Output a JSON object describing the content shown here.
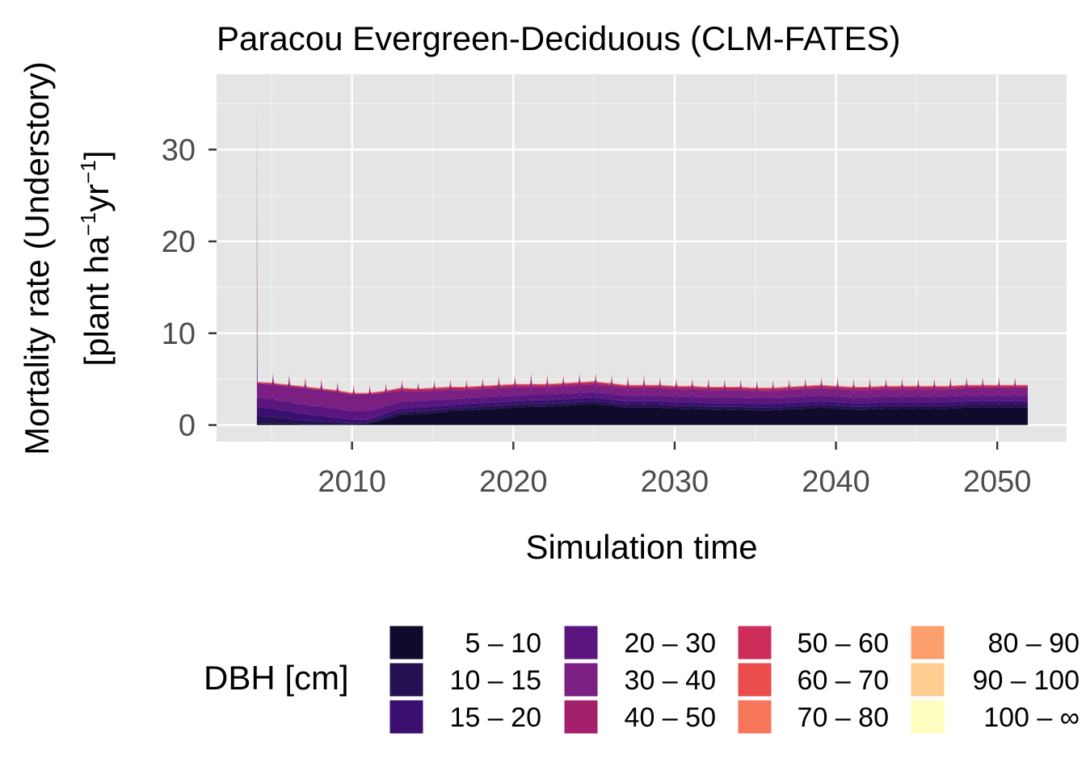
{
  "chart_data": {
    "type": "area",
    "stacked": true,
    "title": "Paracou Evergreen-Deciduous (CLM-FATES)",
    "xlabel": "Simulation time",
    "ylabel_line1": "Mortality rate (Understory)",
    "ylabel_line2": "[plant ha",
    "ylabel_sup1": "−1",
    "ylabel_mid": "yr",
    "ylabel_sup2": "−1",
    "ylabel_end": "]",
    "xlim": [
      2001.6,
      2054.3
    ],
    "ylim": [
      -1.8,
      38.2
    ],
    "x_ticks": [
      2010,
      2020,
      2030,
      2040,
      2050
    ],
    "y_ticks": [
      0,
      10,
      20,
      30
    ],
    "grid": true,
    "panel_background": "#e5e5e5",
    "legend_position": "bottom",
    "legend_title": "DBH [cm]",
    "x_start": 2004.1,
    "x_end": 2051.9,
    "initial_spike": {
      "x": 2004.1,
      "values": [
        0.4,
        0.5,
        0.6,
        8.0,
        9.0,
        6.0,
        4.0,
        2.0,
        1.0,
        0.5,
        0.3,
        0.2
      ]
    },
    "annual_peak_offsets": [
      0.0,
      0.9,
      1.0,
      1.0,
      1.1,
      1.0,
      1.0,
      0.9,
      0.9,
      0.9,
      0.7,
      0.8,
      0.8,
      0.8,
      0.8,
      0.9,
      0.8,
      1.1,
      0.9,
      0.7,
      0.8,
      0.8,
      0.8,
      0.9,
      1.1,
      0.8,
      0.8,
      0.8,
      0.9,
      0.8,
      0.8,
      0.8,
      0.8,
      0.8,
      0.8,
      0.8,
      0.9,
      0.9,
      0.9,
      0.8,
      0.8,
      0.8,
      0.8,
      0.9,
      0.8,
      0.8,
      0.8,
      0.8
    ],
    "years": [
      2004,
      2005,
      2006,
      2007,
      2008,
      2009,
      2010,
      2011,
      2012,
      2013,
      2014,
      2015,
      2016,
      2017,
      2018,
      2019,
      2020,
      2021,
      2022,
      2023,
      2024,
      2025,
      2026,
      2027,
      2028,
      2029,
      2030,
      2031,
      2032,
      2033,
      2034,
      2035,
      2036,
      2037,
      2038,
      2039,
      2040,
      2041,
      2042,
      2043,
      2044,
      2045,
      2046,
      2047,
      2048,
      2049,
      2050,
      2051
    ],
    "series": [
      {
        "name": "5 – 10",
        "color": "#100b2d",
        "values": [
          0.2,
          0.2,
          0.2,
          0.1,
          0.1,
          0.1,
          0.1,
          0.2,
          0.6,
          1.1,
          1.2,
          1.3,
          1.5,
          1.6,
          1.7,
          1.8,
          1.9,
          2.0,
          2.0,
          2.1,
          2.2,
          2.3,
          2.1,
          1.9,
          1.9,
          1.9,
          1.8,
          1.8,
          1.7,
          1.7,
          1.7,
          1.6,
          1.6,
          1.7,
          1.8,
          1.9,
          1.8,
          1.7,
          1.7,
          1.8,
          1.8,
          1.8,
          1.8,
          1.8,
          1.9,
          1.9,
          1.9,
          1.9
        ]
      },
      {
        "name": "10 – 15",
        "color": "#231151",
        "values": [
          0.8,
          0.7,
          0.5,
          0.4,
          0.3,
          0.2,
          0.1,
          0.1,
          0.2,
          0.3,
          0.3,
          0.3,
          0.3,
          0.3,
          0.3,
          0.3,
          0.3,
          0.3,
          0.3,
          0.3,
          0.3,
          0.3,
          0.3,
          0.3,
          0.3,
          0.3,
          0.3,
          0.3,
          0.3,
          0.3,
          0.3,
          0.3,
          0.3,
          0.3,
          0.3,
          0.3,
          0.3,
          0.3,
          0.3,
          0.3,
          0.3,
          0.3,
          0.3,
          0.3,
          0.3,
          0.3,
          0.3,
          0.3
        ]
      },
      {
        "name": "15 – 20",
        "color": "#3b0f70",
        "values": [
          1.0,
          0.9,
          0.8,
          0.7,
          0.6,
          0.5,
          0.4,
          0.3,
          0.4,
          0.4,
          0.4,
          0.4,
          0.4,
          0.4,
          0.4,
          0.4,
          0.4,
          0.4,
          0.4,
          0.4,
          0.4,
          0.4,
          0.4,
          0.4,
          0.4,
          0.4,
          0.4,
          0.4,
          0.4,
          0.4,
          0.4,
          0.4,
          0.4,
          0.4,
          0.4,
          0.4,
          0.4,
          0.4,
          0.4,
          0.4,
          0.4,
          0.4,
          0.4,
          0.4,
          0.4,
          0.4,
          0.4,
          0.4
        ]
      },
      {
        "name": "20 – 30",
        "color": "#5a167e",
        "values": [
          1.0,
          1.0,
          1.0,
          1.0,
          1.0,
          1.0,
          0.9,
          0.9,
          0.8,
          0.7,
          0.7,
          0.7,
          0.6,
          0.6,
          0.6,
          0.6,
          0.6,
          0.6,
          0.6,
          0.6,
          0.6,
          0.6,
          0.6,
          0.6,
          0.6,
          0.6,
          0.6,
          0.6,
          0.6,
          0.6,
          0.6,
          0.6,
          0.6,
          0.6,
          0.6,
          0.6,
          0.6,
          0.6,
          0.6,
          0.6,
          0.6,
          0.6,
          0.6,
          0.6,
          0.6,
          0.6,
          0.6,
          0.6
        ]
      },
      {
        "name": "30 – 40",
        "color": "#7b1f82",
        "values": [
          1.5,
          1.6,
          1.7,
          1.8,
          1.8,
          1.8,
          1.8,
          1.8,
          1.5,
          1.2,
          1.0,
          1.0,
          1.0,
          0.9,
          0.9,
          0.9,
          0.9,
          0.8,
          0.8,
          0.8,
          0.8,
          0.8,
          0.8,
          0.8,
          0.8,
          0.8,
          0.8,
          0.8,
          0.8,
          0.8,
          0.8,
          0.8,
          0.8,
          0.8,
          0.8,
          0.8,
          0.8,
          0.8,
          0.8,
          0.8,
          0.8,
          0.8,
          0.8,
          0.8,
          0.8,
          0.8,
          0.8,
          0.8
        ]
      },
      {
        "name": "40 – 50",
        "color": "#a3206b",
        "values": [
          0.1,
          0.1,
          0.1,
          0.1,
          0.1,
          0.1,
          0.1,
          0.1,
          0.1,
          0.2,
          0.2,
          0.2,
          0.2,
          0.2,
          0.2,
          0.2,
          0.2,
          0.2,
          0.2,
          0.2,
          0.2,
          0.2,
          0.2,
          0.2,
          0.2,
          0.2,
          0.2,
          0.2,
          0.2,
          0.2,
          0.2,
          0.2,
          0.2,
          0.2,
          0.2,
          0.2,
          0.2,
          0.2,
          0.2,
          0.2,
          0.2,
          0.2,
          0.2,
          0.2,
          0.2,
          0.2,
          0.2,
          0.2
        ]
      },
      {
        "name": "50 – 60",
        "color": "#cf2d59",
        "values": [
          0.05,
          0.05,
          0.05,
          0.05,
          0.05,
          0.05,
          0.05,
          0.05,
          0.05,
          0.1,
          0.1,
          0.1,
          0.1,
          0.1,
          0.1,
          0.1,
          0.1,
          0.1,
          0.1,
          0.1,
          0.1,
          0.1,
          0.1,
          0.1,
          0.1,
          0.1,
          0.1,
          0.1,
          0.1,
          0.1,
          0.1,
          0.1,
          0.1,
          0.1,
          0.1,
          0.1,
          0.1,
          0.1,
          0.1,
          0.1,
          0.1,
          0.1,
          0.1,
          0.1,
          0.1,
          0.1,
          0.1,
          0.1
        ]
      },
      {
        "name": "60 – 70",
        "color": "#ea4d4c",
        "values": [
          0.05,
          0.05,
          0.05,
          0.05,
          0.05,
          0.05,
          0.05,
          0.05,
          0.05,
          0.05,
          0.05,
          0.05,
          0.05,
          0.05,
          0.05,
          0.05,
          0.05,
          0.05,
          0.05,
          0.05,
          0.05,
          0.05,
          0.05,
          0.05,
          0.05,
          0.05,
          0.05,
          0.05,
          0.05,
          0.05,
          0.05,
          0.05,
          0.05,
          0.05,
          0.05,
          0.05,
          0.05,
          0.05,
          0.05,
          0.05,
          0.05,
          0.05,
          0.05,
          0.05,
          0.05,
          0.05,
          0.05,
          0.05
        ]
      },
      {
        "name": "70 – 80",
        "color": "#f8765c",
        "values": [
          0.02,
          0.02,
          0.02,
          0.02,
          0.02,
          0.02,
          0.02,
          0.02,
          0.02,
          0.02,
          0.02,
          0.02,
          0.02,
          0.02,
          0.02,
          0.02,
          0.02,
          0.02,
          0.02,
          0.02,
          0.02,
          0.02,
          0.02,
          0.02,
          0.02,
          0.02,
          0.02,
          0.02,
          0.02,
          0.02,
          0.02,
          0.02,
          0.02,
          0.02,
          0.02,
          0.02,
          0.02,
          0.02,
          0.02,
          0.02,
          0.02,
          0.02,
          0.02,
          0.02,
          0.02,
          0.02,
          0.02,
          0.02
        ]
      },
      {
        "name": "80 – 90",
        "color": "#fd9f6c",
        "values": [
          0.01,
          0.01,
          0.01,
          0.01,
          0.01,
          0.01,
          0.01,
          0.01,
          0.01,
          0.01,
          0.01,
          0.01,
          0.01,
          0.01,
          0.01,
          0.01,
          0.01,
          0.01,
          0.01,
          0.01,
          0.01,
          0.01,
          0.01,
          0.01,
          0.01,
          0.01,
          0.01,
          0.01,
          0.01,
          0.01,
          0.01,
          0.01,
          0.01,
          0.01,
          0.01,
          0.01,
          0.01,
          0.01,
          0.01,
          0.01,
          0.01,
          0.01,
          0.01,
          0.01,
          0.01,
          0.01,
          0.01,
          0.01
        ]
      },
      {
        "name": "90 – 100",
        "color": "#fecc8f",
        "values": [
          0,
          0,
          0,
          0,
          0,
          0,
          0,
          0,
          0,
          0,
          0,
          0,
          0,
          0,
          0,
          0,
          0,
          0,
          0,
          0,
          0,
          0,
          0,
          0,
          0,
          0,
          0,
          0,
          0,
          0,
          0,
          0,
          0,
          0,
          0,
          0,
          0,
          0,
          0,
          0,
          0,
          0,
          0,
          0,
          0,
          0,
          0,
          0
        ]
      },
      {
        "name": "100 – ∞",
        "color": "#fcfdbf",
        "values": [
          0,
          0,
          0,
          0,
          0,
          0,
          0,
          0,
          0,
          0,
          0,
          0,
          0,
          0,
          0,
          0,
          0,
          0,
          0,
          0,
          0,
          0,
          0,
          0,
          0,
          0,
          0,
          0,
          0,
          0,
          0,
          0,
          0,
          0,
          0,
          0,
          0,
          0,
          0,
          0,
          0,
          0,
          0,
          0,
          0,
          0,
          0,
          0
        ]
      }
    ]
  }
}
